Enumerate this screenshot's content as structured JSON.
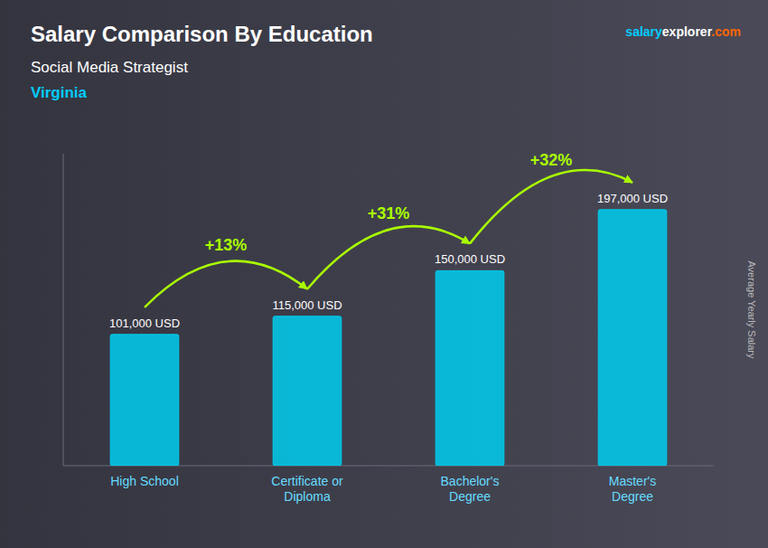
{
  "chart_data": {
    "type": "bar",
    "title": "Salary Comparison By Education",
    "subtitle": "Social Media Strategist",
    "ylabel": "Average Yearly Salary",
    "categories": [
      "High School",
      "Certificate or\nDiploma",
      "Bachelor's\nDegree",
      "Master's\nDegree"
    ],
    "values": [
      101000,
      115000,
      150000,
      197000
    ],
    "value_labels": [
      "101,000 USD",
      "115,000 USD",
      "150,000 USD",
      "197,000 USD"
    ],
    "data_labels": true,
    "color": "#00ccee",
    "ylim": [
      0,
      240000
    ],
    "tick_labels": "x",
    "grid": false,
    "change_labels": [
      {
        "text": "+13%",
        "color": "#aaff00"
      },
      {
        "text": "+31%",
        "color": "#aaff00"
      },
      {
        "text": "+32%",
        "color": "#aaff00"
      }
    ],
    "annotations": [
      {
        "text": "Virginia",
        "color": "#00ccff"
      },
      {
        "text": "salary",
        "color": "#00ccff"
      },
      {
        "text": "explorer",
        "color": "#ffffff"
      },
      {
        "text": ".com",
        "color": "#ff6600"
      }
    ]
  }
}
